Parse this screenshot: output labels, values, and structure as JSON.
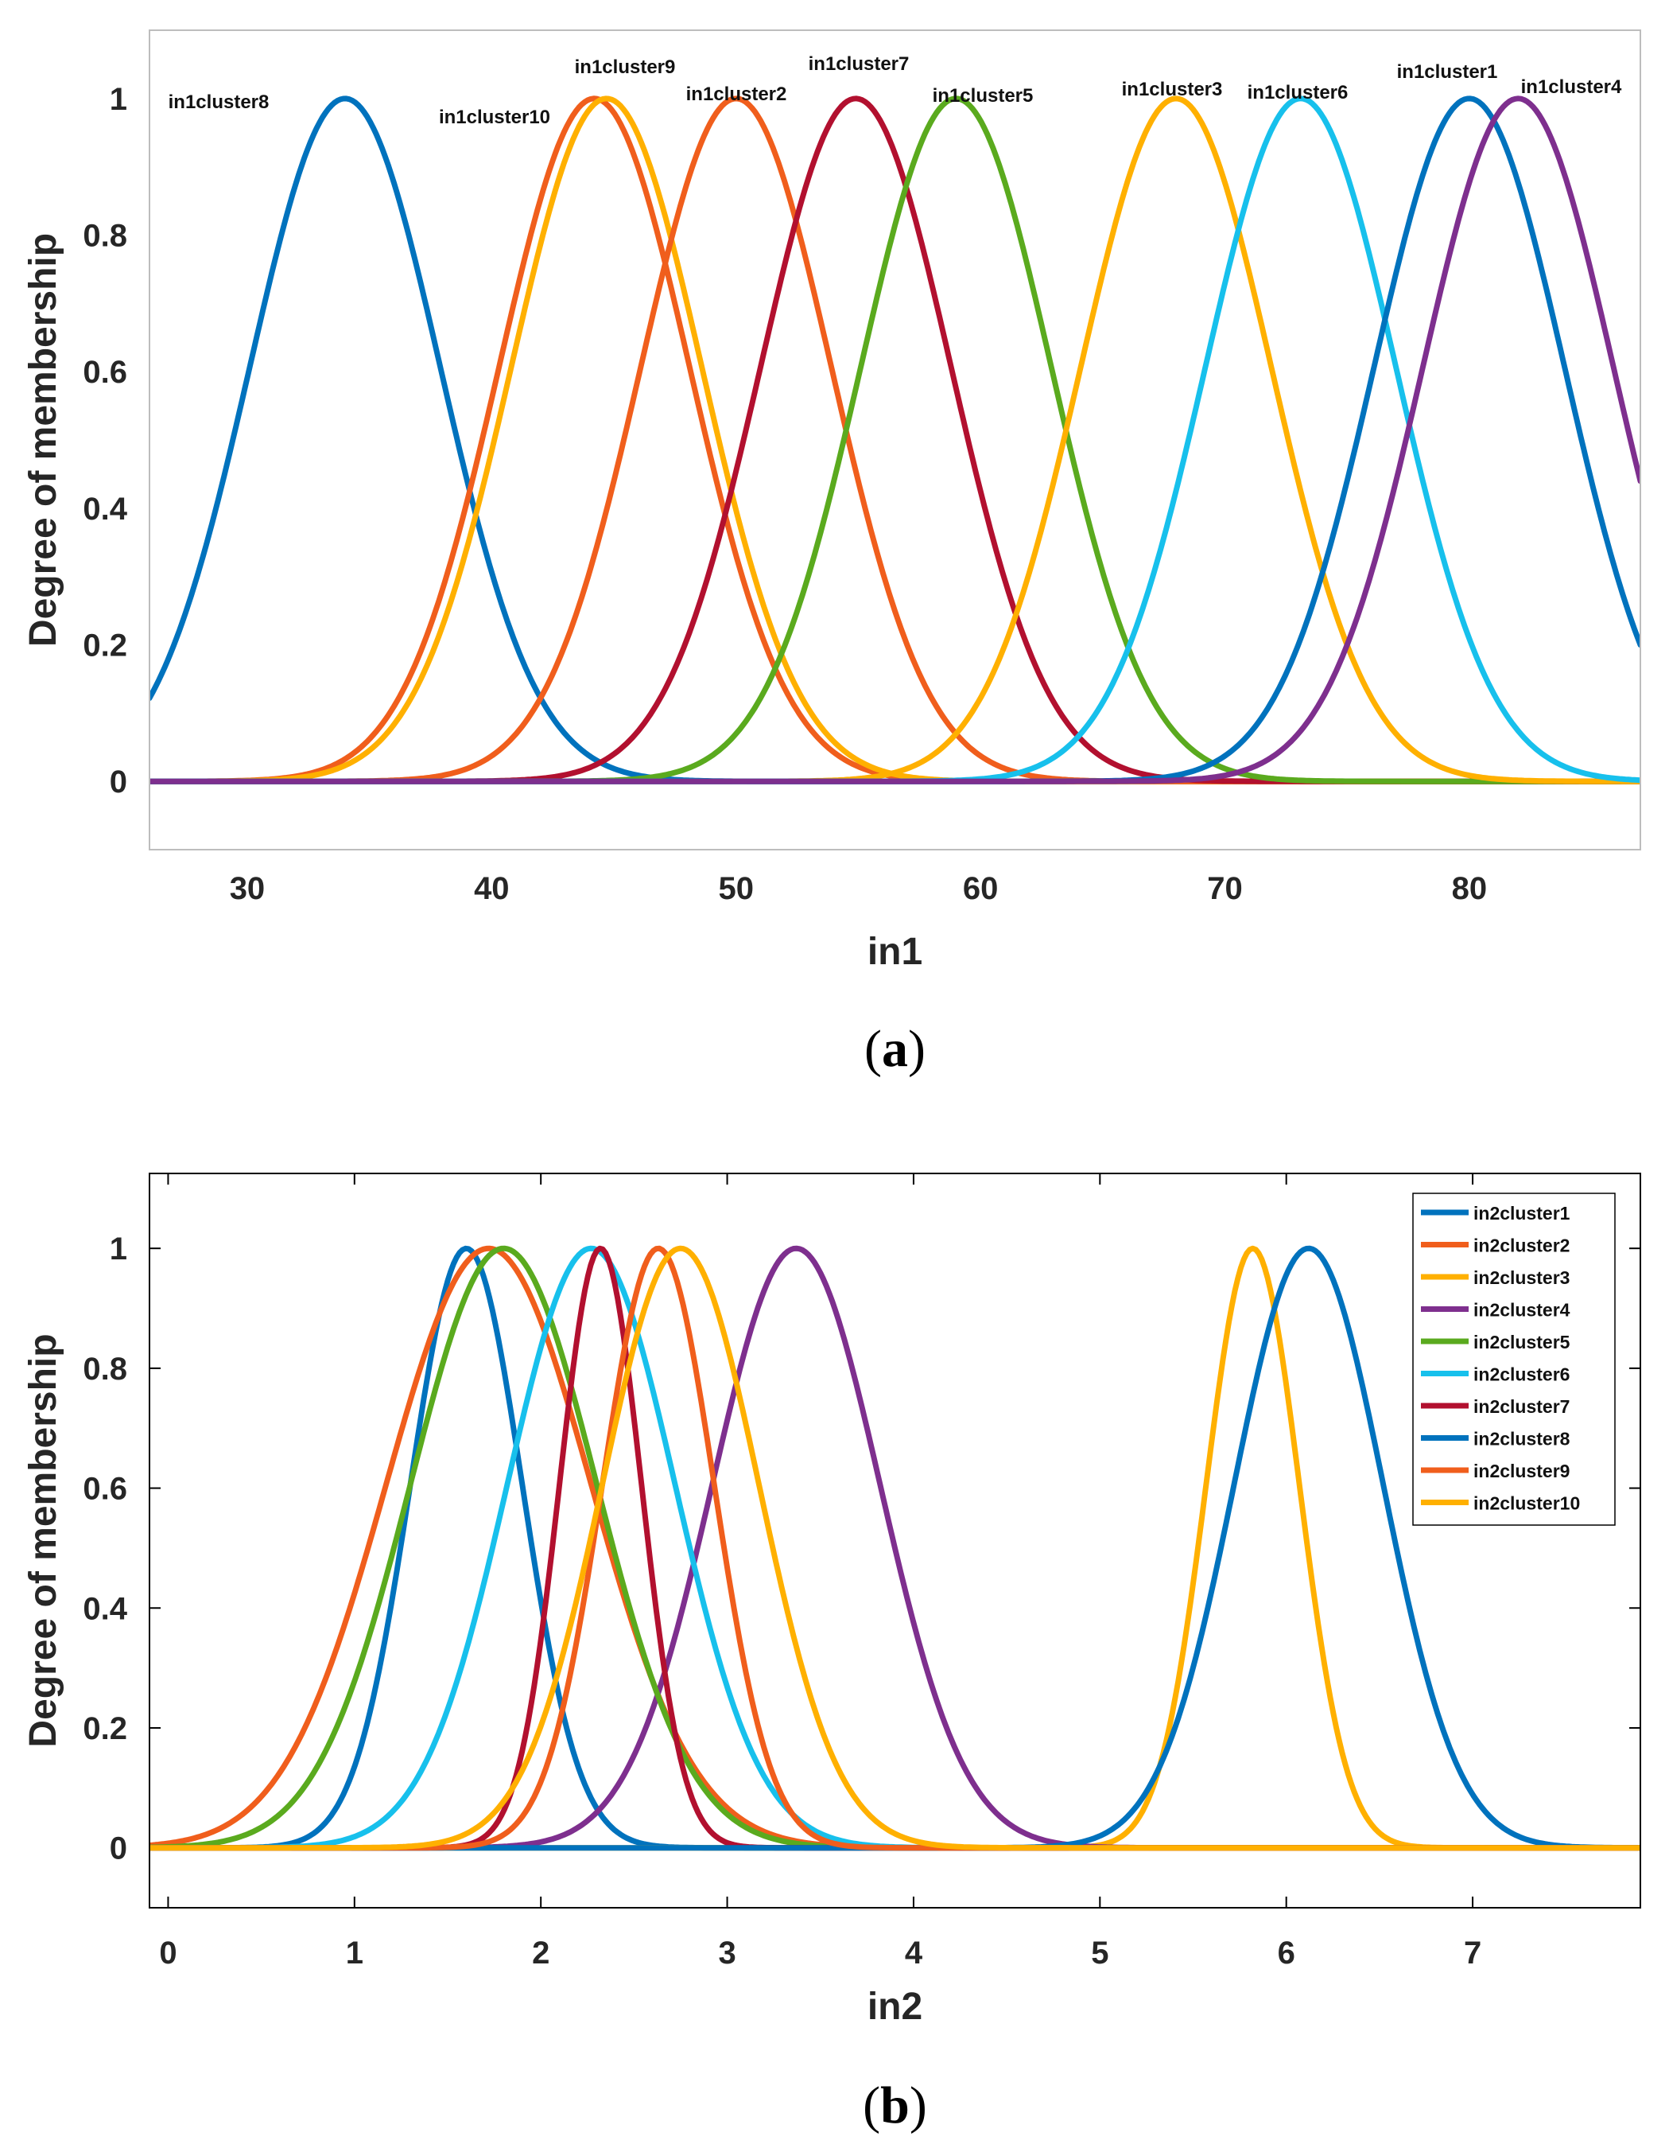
{
  "colors": {
    "blue": "#0072BD",
    "orange": "#F05E1C",
    "yellow": "#FFB000",
    "purple": "#7E2F8E",
    "green": "#5AAA1E",
    "cyan": "#17C0EC",
    "maroon": "#B2102F",
    "axis": "#262626",
    "box": "#BDBDBD"
  },
  "chart_data": [
    {
      "type": "line",
      "caption": "(a)",
      "caption_letter": "a",
      "xlabel": "in1",
      "ylabel": "Degree of membership",
      "xlim": [
        26,
        87
      ],
      "ylim": [
        -0.1,
        1.1
      ],
      "xticks": [
        30,
        40,
        50,
        60,
        70,
        80
      ],
      "yticks": [
        0,
        0.2,
        0.4,
        0.6,
        0.8,
        1
      ],
      "ytick_labels": [
        "0",
        "0.2",
        "0.4",
        "0.6",
        "0.8",
        "1"
      ],
      "function": "gaussian",
      "series": [
        {
          "name": "in1cluster8",
          "center": 34,
          "sigma": 3.9,
          "color": "blue"
        },
        {
          "name": "in1cluster10",
          "center": 44.2,
          "sigma": 3.9,
          "color": "orange"
        },
        {
          "name": "in1cluster9",
          "center": 44.7,
          "sigma": 3.9,
          "color": "yellow"
        },
        {
          "name": "in1cluster2",
          "center": 50,
          "sigma": 3.9,
          "color": "orange"
        },
        {
          "name": "in1cluster7",
          "center": 54.9,
          "sigma": 3.9,
          "color": "maroon"
        },
        {
          "name": "in1cluster5",
          "center": 59,
          "sigma": 3.9,
          "color": "green"
        },
        {
          "name": "in1cluster3",
          "center": 68,
          "sigma": 3.9,
          "color": "yellow"
        },
        {
          "name": "in1cluster6",
          "center": 73.1,
          "sigma": 3.9,
          "color": "cyan"
        },
        {
          "name": "in1cluster1",
          "center": 80,
          "sigma": 3.9,
          "color": "blue"
        },
        {
          "name": "in1cluster4",
          "center": 82,
          "sigma": 3.9,
          "color": "purple"
        }
      ]
    },
    {
      "type": "line",
      "caption": "(b)",
      "caption_letter": "b",
      "xlabel": "in2",
      "ylabel": "Degree of membership",
      "xlim": [
        -0.1,
        7.9
      ],
      "ylim": [
        -0.1,
        1.125
      ],
      "xticks": [
        0,
        1,
        2,
        3,
        4,
        5,
        6,
        7
      ],
      "yticks": [
        0,
        0.2,
        0.4,
        0.6,
        0.8,
        1
      ],
      "ytick_labels": [
        "0",
        "0.2",
        "0.4",
        "0.6",
        "0.8",
        "1"
      ],
      "function": "gaussian",
      "legend": "top-right",
      "series": [
        {
          "name": "in2cluster1",
          "center": 1.6,
          "sigma": 0.3,
          "color": "blue"
        },
        {
          "name": "in2cluster2",
          "center": 1.72,
          "sigma": 0.55,
          "color": "orange"
        },
        {
          "name": "in2cluster3",
          "center": 5.82,
          "sigma": 0.25,
          "color": "yellow"
        },
        {
          "name": "in2cluster4",
          "center": 3.37,
          "sigma": 0.45,
          "color": "purple"
        },
        {
          "name": "in2cluster5",
          "center": 1.8,
          "sigma": 0.5,
          "color": "green"
        },
        {
          "name": "in2cluster6",
          "center": 2.27,
          "sigma": 0.45,
          "color": "cyan"
        },
        {
          "name": "in2cluster7",
          "center": 2.32,
          "sigma": 0.22,
          "color": "maroon"
        },
        {
          "name": "in2cluster8",
          "center": 6.12,
          "sigma": 0.4,
          "color": "blue"
        },
        {
          "name": "in2cluster9",
          "center": 2.63,
          "sigma": 0.3,
          "color": "orange"
        },
        {
          "name": "in2cluster10",
          "center": 2.75,
          "sigma": 0.42,
          "color": "yellow"
        }
      ]
    }
  ]
}
